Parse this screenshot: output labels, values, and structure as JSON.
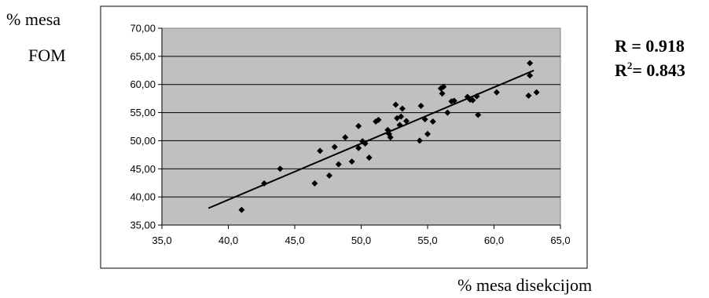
{
  "labels": {
    "y_line1": "% mesa",
    "y_line2": "FOM",
    "x": "% mesa disekcijom",
    "r_text": "R = 0.918",
    "r2_prefix": "R",
    "r2_sup": "2",
    "r2_text": "= 0.843"
  },
  "chart_data": {
    "type": "scatter",
    "xlim": [
      35,
      65
    ],
    "ylim": [
      35,
      70
    ],
    "x_ticks": [
      "35,0",
      "40,0",
      "45,0",
      "50,0",
      "55,0",
      "60,0",
      "65,0"
    ],
    "y_ticks": [
      "35,00",
      "40,00",
      "45,00",
      "50,00",
      "55,00",
      "60,00",
      "65,00",
      "70,00"
    ],
    "grid": "horizontal",
    "plot_background": "#c0c0c0",
    "marker_color": "#000000",
    "trendline": {
      "x": [
        38.5,
        63.0
      ],
      "y": [
        38.0,
        62.5
      ]
    },
    "points": [
      [
        41.0,
        37.7
      ],
      [
        42.7,
        42.4
      ],
      [
        43.9,
        45.0
      ],
      [
        46.5,
        42.4
      ],
      [
        46.9,
        48.2
      ],
      [
        47.6,
        43.8
      ],
      [
        48.0,
        48.9
      ],
      [
        48.3,
        45.8
      ],
      [
        48.8,
        50.6
      ],
      [
        49.3,
        46.3
      ],
      [
        49.8,
        48.7
      ],
      [
        49.8,
        52.6
      ],
      [
        50.1,
        49.9
      ],
      [
        50.3,
        49.5
      ],
      [
        50.6,
        47.0
      ],
      [
        51.1,
        53.4
      ],
      [
        51.3,
        53.7
      ],
      [
        52.0,
        51.9
      ],
      [
        52.1,
        51.2
      ],
      [
        52.2,
        50.6
      ],
      [
        52.6,
        56.4
      ],
      [
        52.7,
        54.0
      ],
      [
        52.9,
        52.8
      ],
      [
        53.0,
        54.3
      ],
      [
        53.1,
        55.7
      ],
      [
        53.4,
        53.5
      ],
      [
        54.4,
        50.0
      ],
      [
        54.5,
        56.2
      ],
      [
        54.8,
        53.8
      ],
      [
        55.0,
        51.2
      ],
      [
        55.4,
        53.4
      ],
      [
        56.0,
        59.3
      ],
      [
        56.1,
        58.4
      ],
      [
        56.2,
        59.6
      ],
      [
        56.5,
        55.0
      ],
      [
        56.8,
        57.0
      ],
      [
        57.0,
        57.1
      ],
      [
        58.0,
        57.8
      ],
      [
        58.2,
        57.3
      ],
      [
        58.4,
        57.2
      ],
      [
        58.7,
        57.9
      ],
      [
        58.8,
        54.6
      ],
      [
        60.2,
        58.6
      ],
      [
        62.6,
        58.0
      ],
      [
        62.7,
        61.6
      ],
      [
        62.7,
        63.8
      ],
      [
        63.2,
        58.6
      ]
    ]
  }
}
